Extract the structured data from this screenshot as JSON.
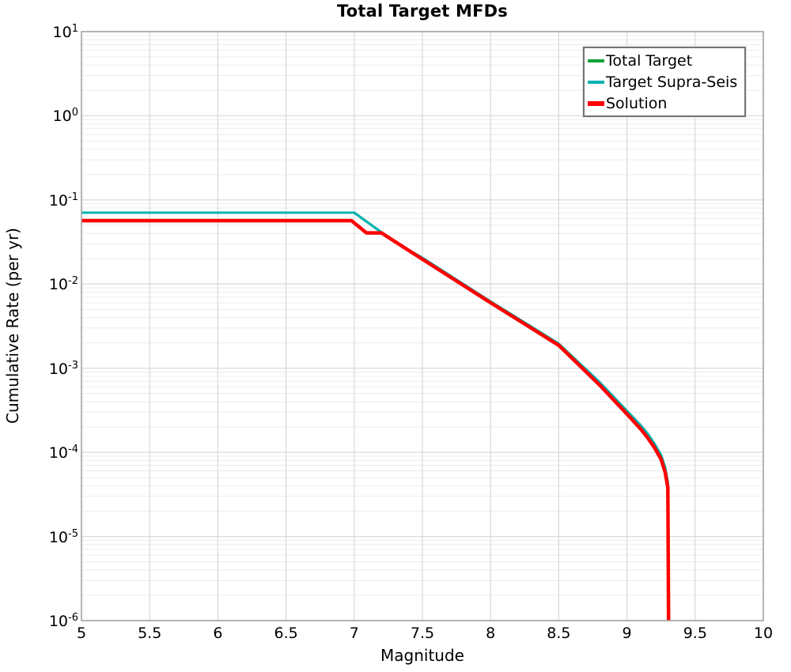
{
  "title": "Total Target MFDs",
  "colors": {
    "total_target": "#10a335",
    "target_supra_seis": "#00b2b2",
    "solution": "#ff0000",
    "grid_major": "#d9d9d9",
    "grid_minor": "#ececec",
    "spine": "#a3a3a3",
    "legend_border": "#767676",
    "text": "#000000"
  },
  "chart_data": {
    "type": "line",
    "title": "Total Target MFDs",
    "xlabel": "Magnitude",
    "ylabel": "Cumulative Rate (per yr)",
    "xlim": [
      5,
      10
    ],
    "ylim": [
      1e-06,
      10
    ],
    "yscale": "log",
    "grid": true,
    "legend_position": "upper right",
    "x_ticks": [
      {
        "value": 5,
        "label": "5"
      },
      {
        "value": 5.5,
        "label": "5.5"
      },
      {
        "value": 6,
        "label": "6"
      },
      {
        "value": 6.5,
        "label": "6.5"
      },
      {
        "value": 7,
        "label": "7"
      },
      {
        "value": 7.5,
        "label": "7.5"
      },
      {
        "value": 8,
        "label": "8"
      },
      {
        "value": 8.5,
        "label": "8.5"
      },
      {
        "value": 9,
        "label": "9"
      },
      {
        "value": 9.5,
        "label": "9.5"
      },
      {
        "value": 10,
        "label": "10"
      }
    ],
    "y_ticks": [
      {
        "exponent": 1,
        "label": "10^1"
      },
      {
        "exponent": 0,
        "label": "10^0"
      },
      {
        "exponent": -1,
        "label": "10^-1"
      },
      {
        "exponent": -2,
        "label": "10^-2"
      },
      {
        "exponent": -3,
        "label": "10^-3"
      },
      {
        "exponent": -4,
        "label": "10^-4"
      },
      {
        "exponent": -5,
        "label": "10^-5"
      },
      {
        "exponent": -6,
        "label": "10^-6"
      }
    ],
    "series": [
      {
        "name": "Total Target",
        "color": "#10a335",
        "line_width": 3,
        "points": [
          [
            5.0,
            0.0705
          ],
          [
            7.0,
            0.0705
          ],
          [
            7.3,
            0.0315
          ],
          [
            7.5,
            0.0205
          ],
          [
            8.0,
            0.0062
          ],
          [
            8.5,
            0.00195
          ],
          [
            8.8,
            0.00068
          ],
          [
            9.0,
            0.00031
          ],
          [
            9.1,
            0.00021
          ],
          [
            9.15,
            0.000168
          ],
          [
            9.2,
            0.000128
          ],
          [
            9.25,
            9.3e-05
          ],
          [
            9.28,
            6.6e-05
          ],
          [
            9.3,
            4.4e-05
          ],
          [
            9.305,
            1e-06
          ]
        ]
      },
      {
        "name": "Target Supra-Seis",
        "color": "#00b2b2",
        "line_width": 3,
        "points": [
          [
            5.0,
            0.0705
          ],
          [
            7.0,
            0.0705
          ],
          [
            7.3,
            0.0315
          ],
          [
            7.5,
            0.0205
          ],
          [
            8.0,
            0.0062
          ],
          [
            8.5,
            0.00195
          ],
          [
            8.8,
            0.00068
          ],
          [
            9.0,
            0.00031
          ],
          [
            9.1,
            0.00021
          ],
          [
            9.15,
            0.000168
          ],
          [
            9.2,
            0.000128
          ],
          [
            9.25,
            9.3e-05
          ],
          [
            9.28,
            6.6e-05
          ],
          [
            9.3,
            4.4e-05
          ],
          [
            9.305,
            1e-06
          ]
        ]
      },
      {
        "name": "Solution",
        "color": "#ff0000",
        "line_width": 4.5,
        "points": [
          [
            5.0,
            0.0567
          ],
          [
            6.98,
            0.0567
          ],
          [
            7.09,
            0.0405
          ],
          [
            7.2,
            0.0405
          ],
          [
            7.5,
            0.0197
          ],
          [
            8.0,
            0.006
          ],
          [
            8.5,
            0.00187
          ],
          [
            8.8,
            0.00063
          ],
          [
            9.0,
            0.000285
          ],
          [
            9.1,
            0.00019
          ],
          [
            9.15,
            0.00015
          ],
          [
            9.2,
            0.000115
          ],
          [
            9.25,
            8.3e-05
          ],
          [
            9.28,
            5.8e-05
          ],
          [
            9.3,
            3.8e-05
          ],
          [
            9.305,
            1e-06
          ]
        ]
      }
    ]
  },
  "legend": {
    "items": [
      {
        "label": "Total Target",
        "color": "#10a335",
        "thickness": 4
      },
      {
        "label": "Target Supra-Seis",
        "color": "#00b2b2",
        "thickness": 4
      },
      {
        "label": "Solution",
        "color": "#ff0000",
        "thickness": 6
      }
    ]
  }
}
